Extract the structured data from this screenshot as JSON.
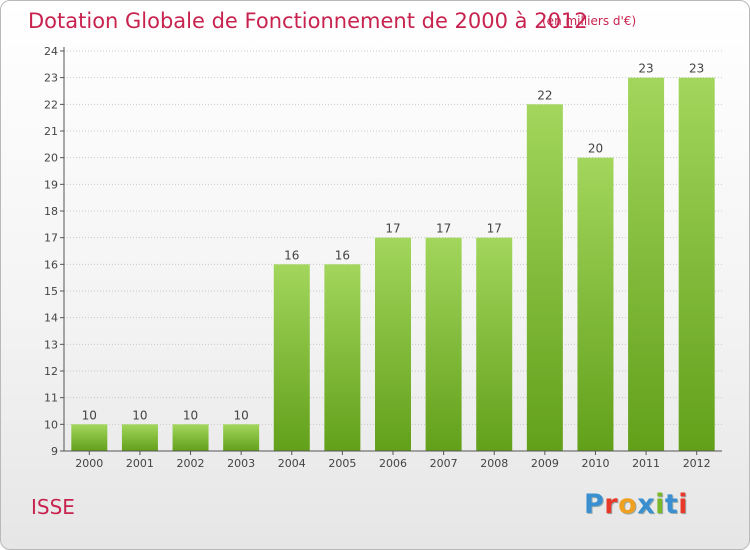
{
  "title": "Dotation Globale de Fonctionnement de 2000 à 2012",
  "subtitle": "(en milliers d'€)",
  "place": "ISSE",
  "logo": {
    "text": "Proxiti",
    "colors": [
      "#3a8fd0",
      "#e8382a",
      "#f0a020",
      "#3a8fd0",
      "#7ab82a",
      "#3a8fd0",
      "#e8382a"
    ]
  },
  "colors": {
    "accent": "#c8234f",
    "bar_top": "#a2d65c",
    "bar_bottom": "#62a01a"
  },
  "chart_data": {
    "type": "bar",
    "categories": [
      "2000",
      "2001",
      "2002",
      "2003",
      "2004",
      "2005",
      "2006",
      "2007",
      "2008",
      "2009",
      "2010",
      "2011",
      "2012"
    ],
    "values": [
      10,
      10,
      10,
      10,
      16,
      16,
      17,
      17,
      17,
      22,
      20,
      23,
      23
    ],
    "data_labels": [
      "10",
      "10",
      "10",
      "10",
      "16",
      "16",
      "17",
      "17",
      "17",
      "22",
      "20",
      "23",
      "23"
    ],
    "yticks": [
      "9",
      "10",
      "11",
      "12",
      "13",
      "14",
      "15",
      "16",
      "17",
      "18",
      "19",
      "20",
      "21",
      "22",
      "23",
      "24"
    ],
    "ylim": [
      9,
      24
    ],
    "grid": "horizontal dotted",
    "xlabel": "",
    "ylabel": ""
  }
}
